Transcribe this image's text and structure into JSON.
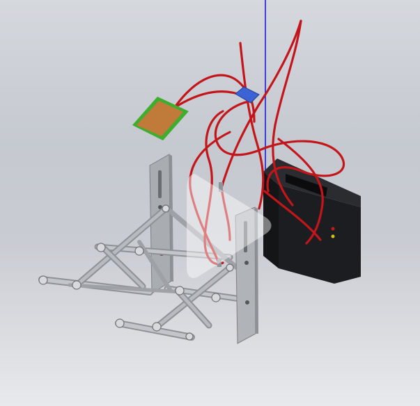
{
  "viewer": {
    "background_top": "#d5d8dd",
    "background_bottom": "#e8e9ec"
  },
  "model": {
    "parts": [
      {
        "name": "sensor-board",
        "color": "#c07a3a",
        "border_color": "#3fae2e"
      },
      {
        "name": "connector",
        "color": "#3b63d6"
      },
      {
        "name": "wires",
        "color": "#c3161b"
      },
      {
        "name": "battery-box",
        "color": "#1c1d20"
      },
      {
        "name": "mounting-plates",
        "color": "#a9acb1"
      },
      {
        "name": "scissor-linkage",
        "color": "#b4b7bb"
      }
    ],
    "axis_color": "#1a1ad8"
  },
  "overlay": {
    "icon": "play-icon",
    "color": "#ffffff",
    "opacity": 0.45
  }
}
